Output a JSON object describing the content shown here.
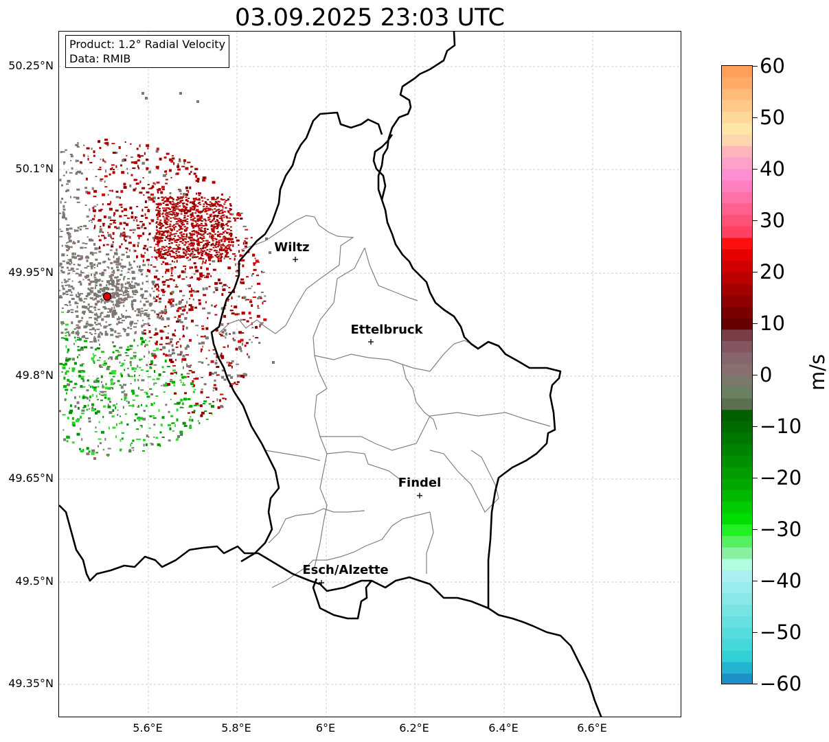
{
  "title": "03.09.2025 23:03 UTC",
  "info": {
    "product": "Product: 1.2° Radial Velocity",
    "data_source": "Data: RMIB"
  },
  "lat_ticks": [
    "50.25°N",
    "50.1°N",
    "49.95°N",
    "49.8°N",
    "49.65°N",
    "49.5°N",
    "49.35°N"
  ],
  "lon_ticks": [
    "5.6°E",
    "5.8°E",
    "6°E",
    "6.2°E",
    "6.4°E",
    "6.6°E"
  ],
  "cities": {
    "wiltz": "Wiltz",
    "ettelbruck": "Ettelbruck",
    "findel": "Findel",
    "esch": "Esch/Alzette"
  },
  "colorbar": {
    "label": "m/s",
    "ticks": [
      "60",
      "50",
      "40",
      "30",
      "20",
      "10",
      "0",
      "−10",
      "−20",
      "−30",
      "−40",
      "−50",
      "−60"
    ],
    "range": [
      -60,
      60
    ],
    "colors_top_to_bottom": [
      "#ff9f5a",
      "#ffaa66",
      "#ffbb77",
      "#ffc988",
      "#ffd899",
      "#ffe6a6",
      "#ffd5b0",
      "#ffb3bb",
      "#ffa0c8",
      "#ff8fd0",
      "#ff80c0",
      "#ff70a8",
      "#ff6090",
      "#ff5078",
      "#ff4060",
      "#ff1010",
      "#e60000",
      "#d00000",
      "#bb0000",
      "#a50000",
      "#900000",
      "#7a0000",
      "#660000",
      "#7a3c46",
      "#855560",
      "#886670",
      "#887070",
      "#7a7a6a",
      "#6a8060",
      "#5a7050",
      "#006000",
      "#006c00",
      "#007800",
      "#008400",
      "#009000",
      "#009c00",
      "#00a800",
      "#00b800",
      "#00cc00",
      "#00dd00",
      "#22f022",
      "#55f060",
      "#88f0a0",
      "#b0ffe0",
      "#aaf0f0",
      "#99ecec",
      "#88e8e8",
      "#77e4e4",
      "#66e0e0",
      "#55dcdc",
      "#44d8d8",
      "#33d0d8",
      "#22b4d0",
      "#1e90c8"
    ]
  },
  "radar_site_color": "#e00000"
}
